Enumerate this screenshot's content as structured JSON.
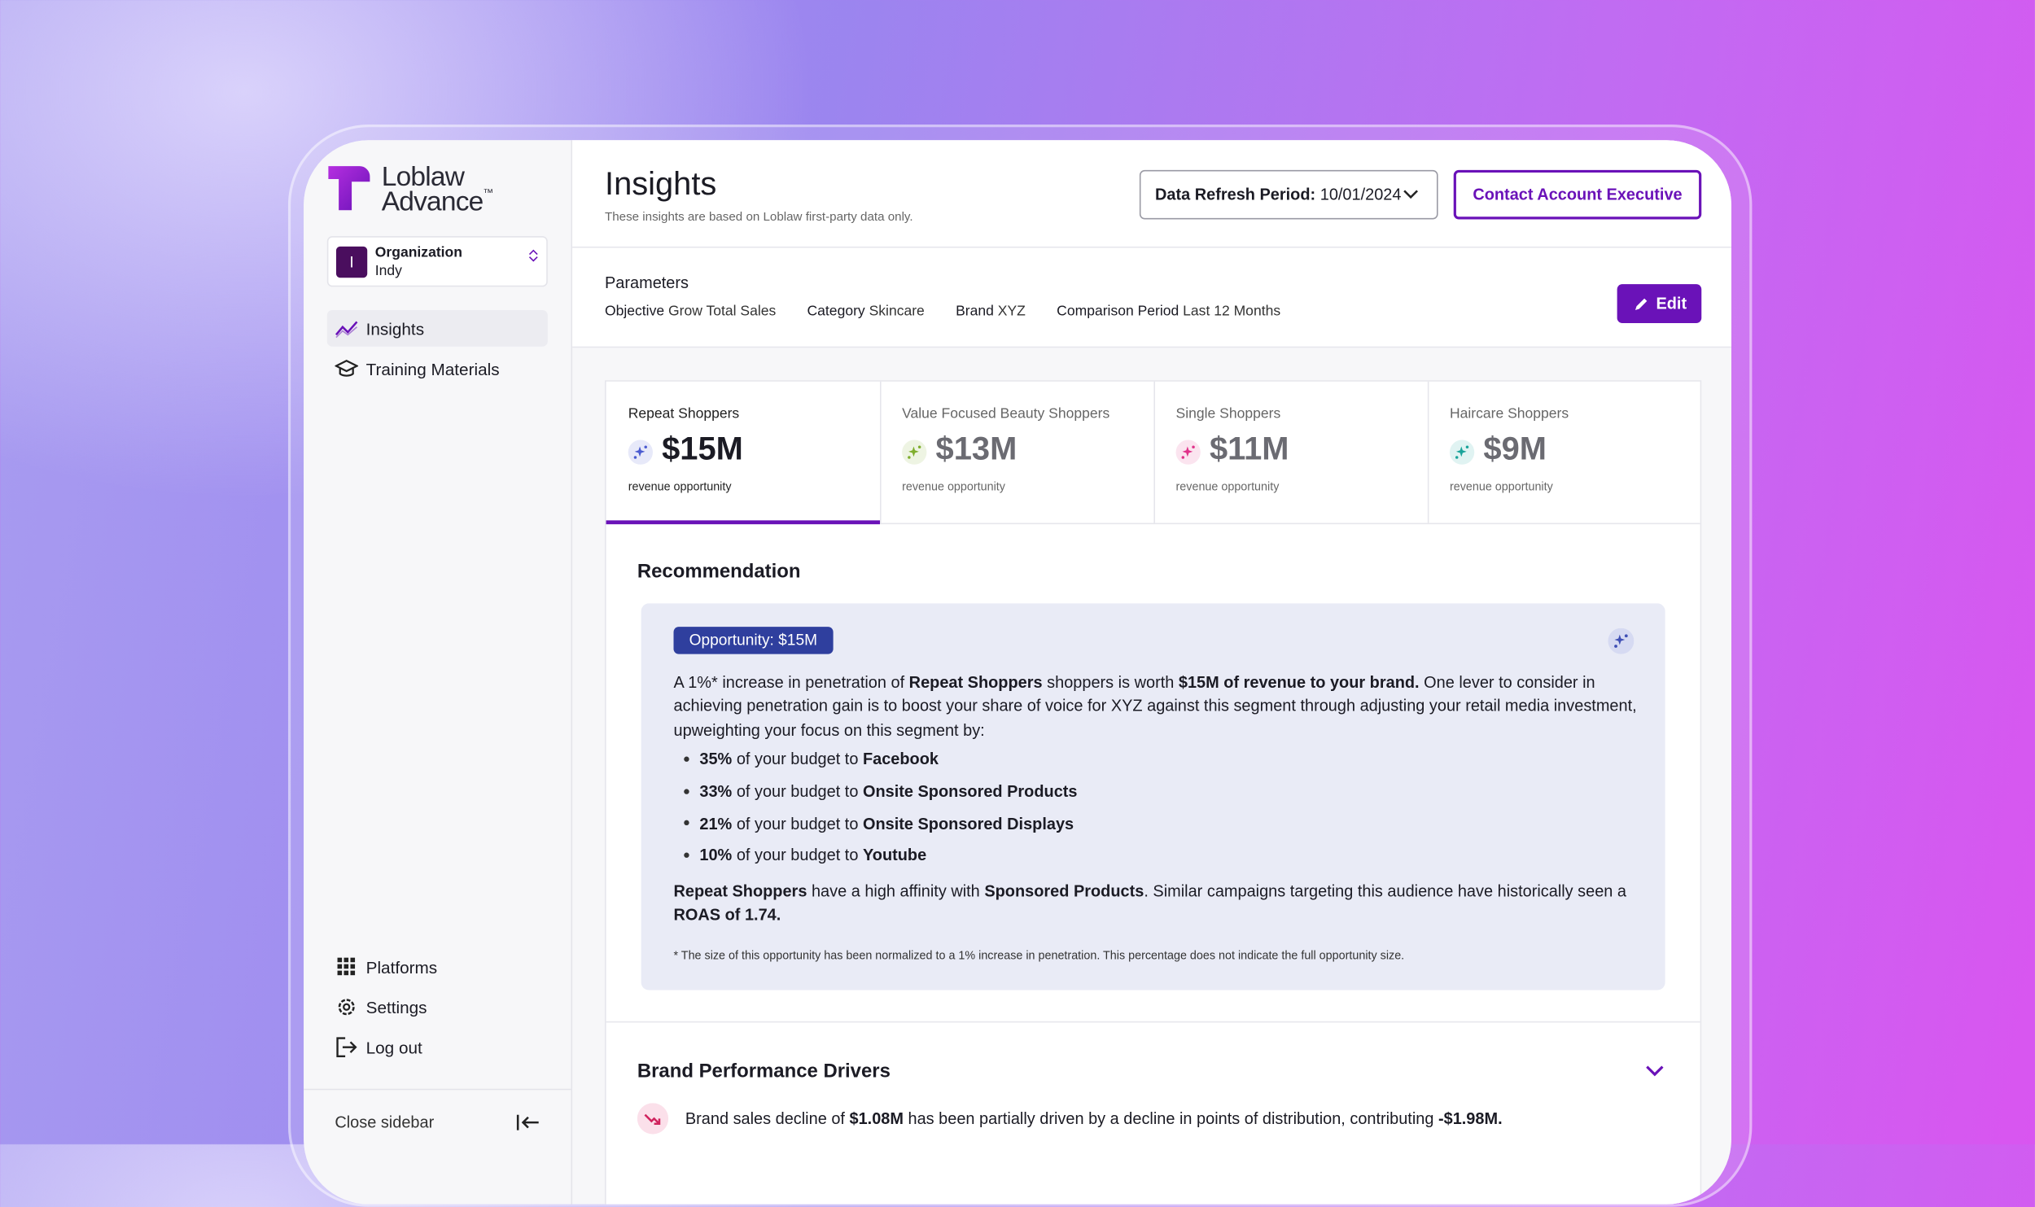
{
  "sidebar": {
    "logo_top": "Loblaw",
    "logo_bottom": "Advance",
    "logo_mark": "™",
    "org_initial": "I",
    "org_label": "Organization",
    "org_name": "Indy",
    "nav": [
      "Insights",
      "Training Materials"
    ],
    "bottom_nav": [
      "Platforms",
      "Settings",
      "Log out"
    ],
    "close": "Close sidebar"
  },
  "header": {
    "title": "Insights",
    "subtitle": "These insights are based on Loblaw first-party data only.",
    "refresh_label": "Data Refresh Period:",
    "refresh_value": "10/01/2024",
    "contact": "Contact Account Executive"
  },
  "parameters": {
    "heading": "Parameters",
    "items": [
      {
        "label": "Objective",
        "value": "Grow Total Sales"
      },
      {
        "label": "Category",
        "value": "Skincare"
      },
      {
        "label": "Brand",
        "value": "XYZ"
      },
      {
        "label": "Comparison Period",
        "value": "Last 12 Months"
      }
    ],
    "edit": "Edit"
  },
  "cards": [
    {
      "name": "Repeat Shoppers",
      "value": "$15M",
      "caption": "revenue opportunity",
      "color": "#4a5bd0"
    },
    {
      "name": "Value Focused Beauty Shoppers",
      "value": "$13M",
      "caption": "revenue opportunity",
      "color": "#7fae2e"
    },
    {
      "name": "Single Shoppers",
      "value": "$11M",
      "caption": "revenue opportunity",
      "color": "#e0328a"
    },
    {
      "name": "Haircare Shoppers",
      "value": "$9M",
      "caption": "revenue opportunity",
      "color": "#1aa39a"
    }
  ],
  "recommendation": {
    "heading": "Recommendation",
    "badge": "Opportunity: $15M",
    "paragraph": [
      {
        "text": "A 1%* increase in penetration of ",
        "bold": false
      },
      {
        "text": "Repeat Shoppers",
        "bold": true
      },
      {
        "text": " shoppers is worth ",
        "bold": false
      },
      {
        "text": "$15M of revenue to your brand.",
        "bold": true
      },
      {
        "text": " One lever to consider in achieving penetration gain is to boost your share of voice for XYZ against this segment through adjusting your retail media investment, upweighting your focus on this segment by:",
        "bold": false
      }
    ],
    "bullets": [
      [
        {
          "text": "35%",
          "bold": true
        },
        {
          "text": " of your budget to ",
          "bold": false
        },
        {
          "text": "Facebook",
          "bold": true
        }
      ],
      [
        {
          "text": "33%",
          "bold": true
        },
        {
          "text": " of your budget to ",
          "bold": false
        },
        {
          "text": "Onsite Sponsored Products",
          "bold": true
        }
      ],
      [
        {
          "text": "21%",
          "bold": true
        },
        {
          "text": " of your budget to ",
          "bold": false
        },
        {
          "text": "Onsite Sponsored Displays",
          "bold": true
        }
      ],
      [
        {
          "text": "10%",
          "bold": true
        },
        {
          "text": " of your budget to ",
          "bold": false
        },
        {
          "text": "Youtube",
          "bold": true
        }
      ]
    ],
    "closing": [
      {
        "text": "Repeat Shoppers",
        "bold": true
      },
      {
        "text": " have a high affinity with ",
        "bold": false
      },
      {
        "text": "Sponsored Products",
        "bold": true
      },
      {
        "text": ". Similar campaigns targeting this audience have historically seen a ",
        "bold": false
      },
      {
        "text": "ROAS of 1.74.",
        "bold": true
      }
    ],
    "footnote": "* The size of this opportunity has been normalized to a 1% increase in penetration. This percentage does not indicate the full opportunity size."
  },
  "drivers": {
    "heading": "Brand Performance Drivers",
    "item": [
      {
        "text": "Brand sales decline of ",
        "bold": false
      },
      {
        "text": "$1.08M",
        "bold": true
      },
      {
        "text": " has been partially driven by a decline in points of distribution, contributing ",
        "bold": false
      },
      {
        "text": "-$1.98M.",
        "bold": true
      }
    ]
  }
}
